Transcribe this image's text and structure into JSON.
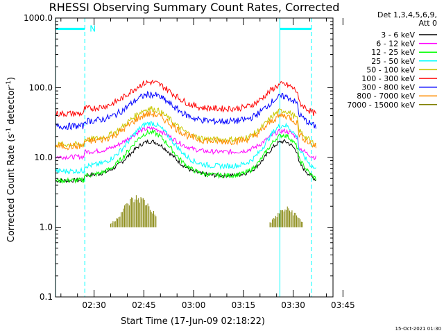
{
  "chart_data": {
    "type": "line",
    "title": "RHESSI Observing Summary Count Rates, Corrected",
    "xlabel": "Start Time (17-Jun-09 02:18:22)",
    "ylabel_main": "Corrected Count Rate (s",
    "ylabel_sup1": "-1",
    "ylabel_mid": " detector",
    "ylabel_sup2": "-1",
    "ylabel_end": ")",
    "yscale": "log",
    "ylim": [
      0.1,
      1000.0
    ],
    "yticks": [
      "1000.0",
      "100.0",
      "10.0",
      "1.0",
      "0.1"
    ],
    "ytick_values": [
      1000,
      100,
      10,
      1,
      0.1
    ],
    "xlim_min": [
      18.37,
      102
    ],
    "xticks": [
      "02:30",
      "02:45",
      "03:00",
      "03:15",
      "03:30",
      "03:45"
    ],
    "xtick_min": [
      30,
      45,
      60,
      75,
      90,
      105
    ],
    "legend_header": [
      "Det 1,3,4,5,6,9,",
      "Att 0"
    ],
    "legend_position": "right",
    "series": [
      {
        "name": "3 - 6 keV",
        "color": "#000000",
        "flat": 5.5,
        "peak1": 17,
        "peak2": 17
      },
      {
        "name": "6 - 12 keV",
        "color": "#ff00ff",
        "flat": 12,
        "peak1": 26,
        "peak2": 24
      },
      {
        "name": "12 - 25 keV",
        "color": "#00ff00",
        "flat": 5.5,
        "peak1": 23,
        "peak2": 21
      },
      {
        "name": "25 - 50 keV",
        "color": "#00ffff",
        "flat": 7.5,
        "peak1": 31,
        "peak2": 29
      },
      {
        "name": "50 - 100 keV",
        "color": "#c8c800",
        "flat": 18,
        "peak1": 50,
        "peak2": 47
      },
      {
        "name": "100 - 300 keV",
        "color": "#ff0000",
        "flat": 50,
        "peak1": 120,
        "peak2": 112
      },
      {
        "name": "300 - 800 keV",
        "color": "#0000ff",
        "flat": 33,
        "peak1": 80,
        "peak2": 75
      },
      {
        "name": "800 - 7000 keV",
        "color": "#ff8c00",
        "flat": 17,
        "peak1": 42,
        "peak2": 40
      },
      {
        "name": "7000 - 15000 keV",
        "color": "#808000",
        "flat": 1.0,
        "peak1": 2.5,
        "peak2": 2.0
      }
    ],
    "annotations": {
      "night_label": "N",
      "bar_color": "#00ffff",
      "night_bar_1_min": [
        18.4,
        27.2
      ],
      "night_bar_2_min": [
        86.0,
        95.5
      ],
      "vline_solid_min": [
        18.4,
        86.0
      ],
      "vline_dashed_min": [
        27.2,
        95.5
      ]
    },
    "grid": false
  },
  "footer": {
    "stamp": "15-Oct-2021 01:30"
  }
}
